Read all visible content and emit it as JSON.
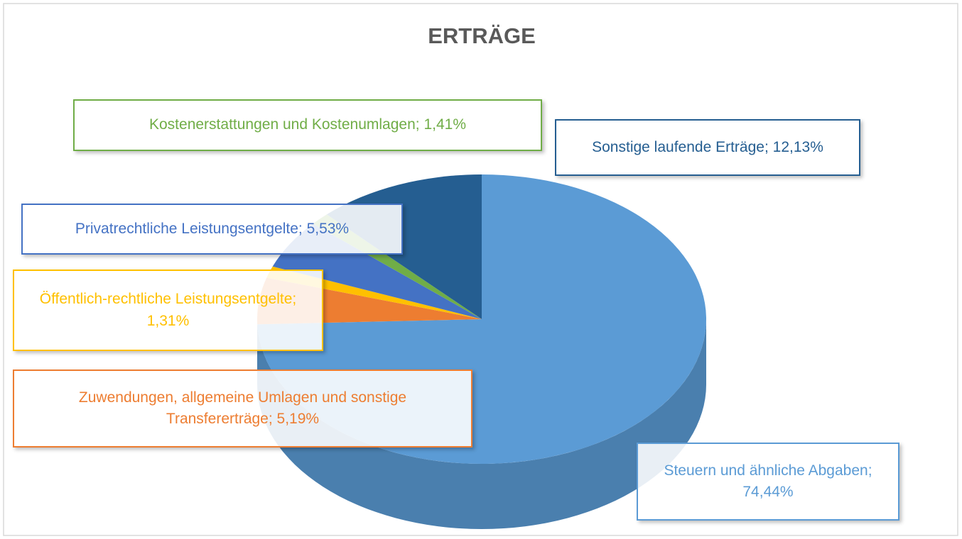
{
  "chart_data": {
    "type": "pie",
    "title": "ERTRÄGE",
    "categories": [
      "Steuern und ähnliche Abgaben",
      "Zuwendungen, allgemeine Umlagen und sonstige Transfererträge",
      "Öffentlich-rechtliche Leistungsentgelte",
      "Privatrechtliche Leistungsentgelte",
      "Kostenerstattungen und Kostenumlagen",
      "Sonstige laufende Erträge"
    ],
    "values": [
      74.44,
      5.19,
      1.31,
      5.53,
      1.41,
      12.13
    ],
    "value_labels": [
      "74,44%",
      "5,19%",
      "1,31%",
      "5,53%",
      "1,41%",
      "12,13%"
    ],
    "label_separator": "; ",
    "colors": [
      "#5b9bd5",
      "#ed7d31",
      "#ffc000",
      "#4472c4",
      "#70ad47",
      "#255e91"
    ]
  }
}
